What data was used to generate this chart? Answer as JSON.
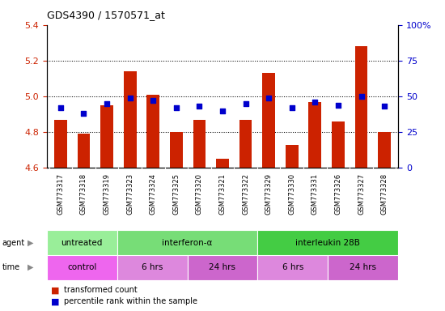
{
  "title": "GDS4390 / 1570571_at",
  "samples": [
    "GSM773317",
    "GSM773318",
    "GSM773319",
    "GSM773323",
    "GSM773324",
    "GSM773325",
    "GSM773320",
    "GSM773321",
    "GSM773322",
    "GSM773329",
    "GSM773330",
    "GSM773331",
    "GSM773326",
    "GSM773327",
    "GSM773328"
  ],
  "transformed_count": [
    4.87,
    4.79,
    4.95,
    5.14,
    5.01,
    4.8,
    4.87,
    4.65,
    4.87,
    5.13,
    4.73,
    4.97,
    4.86,
    5.28,
    4.8
  ],
  "percentile_rank": [
    42,
    38,
    45,
    49,
    47,
    42,
    43,
    40,
    45,
    49,
    42,
    46,
    44,
    50,
    43
  ],
  "ylim_left": [
    4.6,
    5.4
  ],
  "ylim_right": [
    0,
    100
  ],
  "yticks_left": [
    4.6,
    4.8,
    5.0,
    5.2,
    5.4
  ],
  "yticks_right": [
    0,
    25,
    50,
    75,
    100
  ],
  "bar_color": "#cc2200",
  "dot_color": "#0000cc",
  "bg_color": "#ffffff",
  "label_bg": "#cccccc",
  "agent_groups": [
    {
      "label": "untreated",
      "start": 0,
      "end": 3,
      "color": "#99ee99"
    },
    {
      "label": "interferon-α",
      "start": 3,
      "end": 9,
      "color": "#77dd77"
    },
    {
      "label": "interleukin 28B",
      "start": 9,
      "end": 15,
      "color": "#44cc44"
    }
  ],
  "time_groups": [
    {
      "label": "control",
      "start": 0,
      "end": 3,
      "color": "#ee66ee"
    },
    {
      "label": "6 hrs",
      "start": 3,
      "end": 6,
      "color": "#dd88dd"
    },
    {
      "label": "24 hrs",
      "start": 6,
      "end": 9,
      "color": "#cc66cc"
    },
    {
      "label": "6 hrs",
      "start": 9,
      "end": 12,
      "color": "#dd88dd"
    },
    {
      "label": "24 hrs",
      "start": 12,
      "end": 15,
      "color": "#cc66cc"
    }
  ],
  "legend_bar_label": "transformed count",
  "legend_dot_label": "percentile rank within the sample"
}
